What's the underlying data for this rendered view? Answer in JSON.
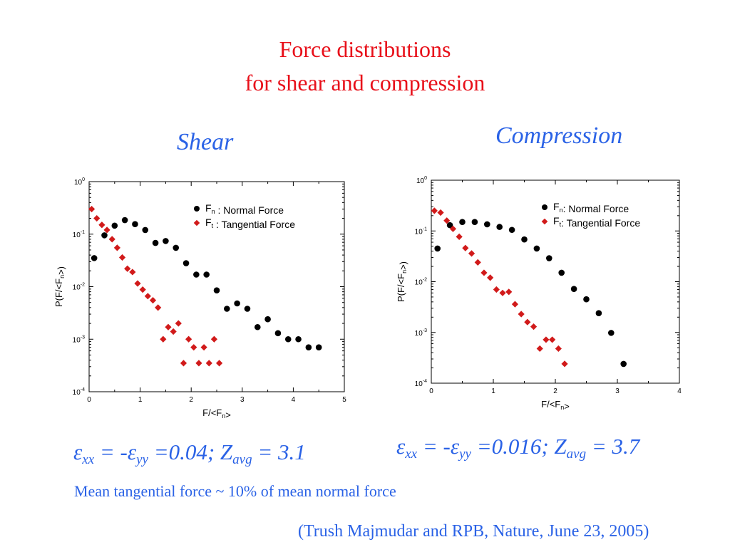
{
  "slide": {
    "title_line1": "Force distributions",
    "title_line2": "for shear and compression",
    "shear_label": "Shear",
    "compression_label": "Compression",
    "note": "Mean tangential force ~ 10% of mean normal force",
    "citation": "(Trush Majmudar and RPB, Nature, June 23, 2005)",
    "eq_shear": {
      "eps": "ε",
      "xx": "xx",
      "mid": " = -",
      "yy": "yy",
      "val": " =0.04;   Z",
      "avg": "avg",
      "z": " = 3.1"
    },
    "eq_comp": {
      "eps": "ε",
      "xx": "xx",
      "mid": " = -",
      "yy": "yy",
      "val": " =0.016;   Z",
      "avg": "avg",
      "z": " = 3.7"
    },
    "colors": {
      "title": "#e8101a",
      "text": "#2a62e6",
      "normal": "#000000",
      "tangential": "#d11a1a"
    }
  },
  "chart_data": [
    {
      "type": "scatter",
      "panel": "Shear",
      "ylabel": "P(F/<F_n>)",
      "xlabel": "F/<F_n>",
      "xlim": [
        0,
        5
      ],
      "ylim": [
        0.0001,
        1
      ],
      "yscale": "log",
      "xticks": [
        "0",
        "1",
        "2",
        "3",
        "4",
        "5"
      ],
      "yticks": [
        "10^0",
        "10^-1",
        "10^-2",
        "10^-3",
        "10^-4"
      ],
      "legend_position": "top-right",
      "series": [
        {
          "name": "F_n : Normal Force",
          "marker": "circle",
          "points": [
            [
              0.1,
              0.035
            ],
            [
              0.3,
              0.095
            ],
            [
              0.5,
              0.145
            ],
            [
              0.7,
              0.185
            ],
            [
              0.9,
              0.155
            ],
            [
              1.1,
              0.12
            ],
            [
              1.3,
              0.068
            ],
            [
              1.5,
              0.074
            ],
            [
              1.7,
              0.055
            ],
            [
              1.9,
              0.028
            ],
            [
              2.1,
              0.017
            ],
            [
              2.3,
              0.017
            ],
            [
              2.5,
              0.0085
            ],
            [
              2.7,
              0.0038
            ],
            [
              2.9,
              0.0048
            ],
            [
              3.1,
              0.0038
            ],
            [
              3.3,
              0.0017
            ],
            [
              3.5,
              0.0024
            ],
            [
              3.7,
              0.0013
            ],
            [
              3.9,
              0.001
            ],
            [
              4.1,
              0.001
            ],
            [
              4.3,
              0.0007
            ],
            [
              4.5,
              0.0007
            ]
          ]
        },
        {
          "name": "F_t : Tangential Force",
          "marker": "diamond",
          "points": [
            [
              0.05,
              0.3
            ],
            [
              0.15,
              0.2
            ],
            [
              0.25,
              0.15
            ],
            [
              0.35,
              0.12
            ],
            [
              0.45,
              0.08
            ],
            [
              0.55,
              0.055
            ],
            [
              0.65,
              0.036
            ],
            [
              0.75,
              0.022
            ],
            [
              0.85,
              0.019
            ],
            [
              0.95,
              0.0115
            ],
            [
              1.05,
              0.0088
            ],
            [
              1.15,
              0.0066
            ],
            [
              1.25,
              0.0055
            ],
            [
              1.35,
              0.004
            ],
            [
              1.45,
              0.001
            ],
            [
              1.55,
              0.0017
            ],
            [
              1.65,
              0.0014
            ],
            [
              1.75,
              0.002
            ],
            [
              1.85,
              0.00035
            ],
            [
              1.95,
              0.001
            ],
            [
              2.05,
              0.0007
            ],
            [
              2.15,
              0.00035
            ],
            [
              2.25,
              0.0007
            ],
            [
              2.35,
              0.00035
            ],
            [
              2.45,
              0.001
            ],
            [
              2.55,
              0.00035
            ]
          ]
        }
      ]
    },
    {
      "type": "scatter",
      "panel": "Compression",
      "ylabel": "P(F/<F_n>)",
      "xlabel": "F/<F_n>",
      "xlim": [
        0,
        4
      ],
      "ylim": [
        0.0001,
        1
      ],
      "yscale": "log",
      "xticks": [
        "0",
        "1",
        "2",
        "3",
        "4"
      ],
      "yticks": [
        "10^0",
        "10^-1",
        "10^-2",
        "10^-3",
        "10^-4"
      ],
      "legend_position": "top-right",
      "series": [
        {
          "name": "F_n: Normal Force",
          "marker": "circle",
          "points": [
            [
              0.1,
              0.045
            ],
            [
              0.3,
              0.13
            ],
            [
              0.5,
              0.15
            ],
            [
              0.7,
              0.15
            ],
            [
              0.9,
              0.135
            ],
            [
              1.1,
              0.12
            ],
            [
              1.3,
              0.105
            ],
            [
              1.5,
              0.068
            ],
            [
              1.7,
              0.045
            ],
            [
              1.9,
              0.029
            ],
            [
              2.1,
              0.015
            ],
            [
              2.3,
              0.0072
            ],
            [
              2.5,
              0.0045
            ],
            [
              2.7,
              0.0024
            ],
            [
              2.9,
              0.00098
            ],
            [
              3.1,
              0.00024
            ]
          ]
        },
        {
          "name": "F_t: Tangential Force",
          "marker": "diamond",
          "points": [
            [
              0.05,
              0.25
            ],
            [
              0.15,
              0.23
            ],
            [
              0.25,
              0.16
            ],
            [
              0.35,
              0.11
            ],
            [
              0.45,
              0.077
            ],
            [
              0.55,
              0.046
            ],
            [
              0.65,
              0.036
            ],
            [
              0.75,
              0.024
            ],
            [
              0.85,
              0.015
            ],
            [
              0.95,
              0.012
            ],
            [
              1.05,
              0.007
            ],
            [
              1.15,
              0.006
            ],
            [
              1.25,
              0.0063
            ],
            [
              1.35,
              0.0036
            ],
            [
              1.45,
              0.0023
            ],
            [
              1.55,
              0.0016
            ],
            [
              1.65,
              0.0013
            ],
            [
              1.75,
              0.00048
            ],
            [
              1.85,
              0.00072
            ],
            [
              1.95,
              0.00072
            ],
            [
              2.05,
              0.00048
            ],
            [
              2.15,
              0.00024
            ]
          ]
        }
      ]
    }
  ]
}
